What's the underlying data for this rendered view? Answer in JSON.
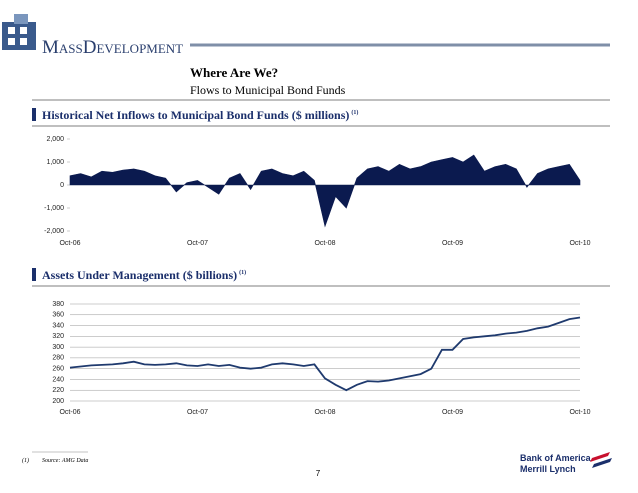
{
  "header": {
    "logo_text": "MassDevelopment",
    "title": "Where Are We?",
    "subtitle": "Flows to Municipal Bond Funds"
  },
  "chart_data": [
    {
      "type": "area",
      "title": "Historical Net Inflows to Municipal Bond Funds ($ millions)",
      "title_note": "(1)",
      "categories": [
        "Oct-06",
        null,
        null,
        null,
        null,
        null,
        null,
        null,
        null,
        null,
        null,
        null,
        "Oct-07",
        null,
        null,
        null,
        null,
        null,
        null,
        null,
        null,
        null,
        null,
        null,
        "Oct-08",
        null,
        null,
        null,
        null,
        null,
        null,
        null,
        null,
        null,
        null,
        null,
        "Oct-09",
        null,
        null,
        null,
        null,
        null,
        null,
        null,
        null,
        null,
        null,
        null,
        "Oct-10"
      ],
      "values": [
        400,
        500,
        350,
        600,
        550,
        650,
        700,
        600,
        400,
        300,
        -300,
        100,
        200,
        -100,
        -400,
        300,
        500,
        -200,
        600,
        700,
        500,
        400,
        600,
        200,
        -1800,
        -500,
        -1000,
        300,
        700,
        800,
        600,
        900,
        700,
        800,
        1000,
        1100,
        1200,
        1000,
        1300,
        600,
        800,
        900,
        700,
        -100,
        500,
        700,
        800,
        900,
        200
      ],
      "color": "#0b1a4f",
      "ylim": [
        -2000,
        2000
      ],
      "yticks": [
        {
          "value": 2000,
          "label": "2,000"
        },
        {
          "value": 1000,
          "label": "1,000"
        },
        0,
        {
          "value": -1000,
          "label": "-1,000"
        },
        {
          "value": -2000,
          "label": "-2,000"
        }
      ],
      "grid": false
    },
    {
      "type": "line",
      "title": "Assets Under Management ($ billions)",
      "title_note": "(1)",
      "categories": [
        "Oct-06",
        null,
        null,
        null,
        null,
        null,
        null,
        null,
        null,
        null,
        null,
        null,
        "Oct-07",
        null,
        null,
        null,
        null,
        null,
        null,
        null,
        null,
        null,
        null,
        null,
        "Oct-08",
        null,
        null,
        null,
        null,
        null,
        null,
        null,
        null,
        null,
        null,
        null,
        "Oct-09",
        null,
        null,
        null,
        null,
        null,
        null,
        null,
        null,
        null,
        null,
        null,
        "Oct-10"
      ],
      "values": [
        262,
        264,
        266,
        267,
        268,
        270,
        273,
        268,
        267,
        268,
        270,
        266,
        265,
        268,
        265,
        267,
        262,
        260,
        262,
        268,
        270,
        268,
        265,
        268,
        242,
        230,
        220,
        230,
        237,
        236,
        238,
        242,
        246,
        250,
        260,
        295,
        295,
        315,
        318,
        320,
        322,
        325,
        327,
        330,
        335,
        338,
        345,
        352,
        355
      ],
      "color": "#1f3a6e",
      "ylim": [
        200,
        380
      ],
      "yticks": [
        380,
        360,
        340,
        320,
        300,
        280,
        260,
        240,
        220,
        200
      ],
      "grid": true
    }
  ],
  "footer": {
    "note_mark": "(1)",
    "note": "Source: AMG Data",
    "page": "7",
    "bank_line1": "Bank of America",
    "bank_line2": "Merrill Lynch"
  }
}
